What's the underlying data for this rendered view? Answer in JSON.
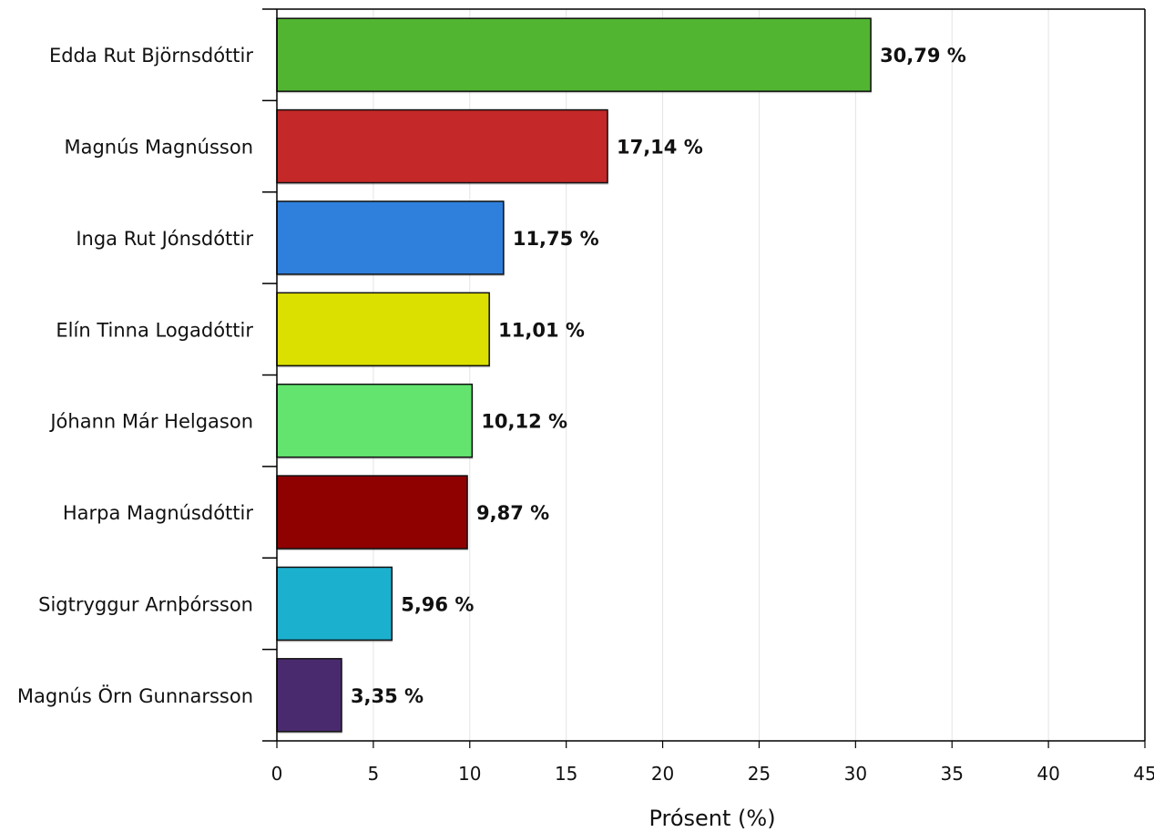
{
  "chart_data": {
    "type": "bar",
    "orientation": "horizontal",
    "categories": [
      "Edda Rut Björnsdóttir",
      "Magnús Magnússon",
      "Inga Rut Jónsdóttir",
      "Elín Tinna Logadóttir",
      "Jóhann Már Helgason",
      "Harpa Magnúsdóttir",
      "Sigtryggur Arnþórsson",
      "Magnús Örn Gunnarsson"
    ],
    "values": [
      30.79,
      17.14,
      11.75,
      11.01,
      10.12,
      9.87,
      5.96,
      3.35
    ],
    "value_labels": [
      "30,79 %",
      "17,14 %",
      "11,75 %",
      "11,01 %",
      "10,12 %",
      "9,87 %",
      "5,96 %",
      "3,35 %"
    ],
    "colors": [
      "#52b532",
      "#c42828",
      "#2f80dc",
      "#dce000",
      "#63e46f",
      "#8f0000",
      "#1cb0cf",
      "#4a2a6e"
    ],
    "xlabel": "Prósent (%)",
    "ylabel": "",
    "title": "",
    "xlim": [
      0,
      45
    ],
    "xticks": [
      0,
      5,
      10,
      15,
      20,
      25,
      30,
      35,
      40,
      45
    ],
    "xtick_labels": [
      "0",
      "5",
      "10",
      "15",
      "20",
      "25",
      "30",
      "35",
      "40",
      "45"
    ],
    "grid": "vertical",
    "legend": "none"
  }
}
